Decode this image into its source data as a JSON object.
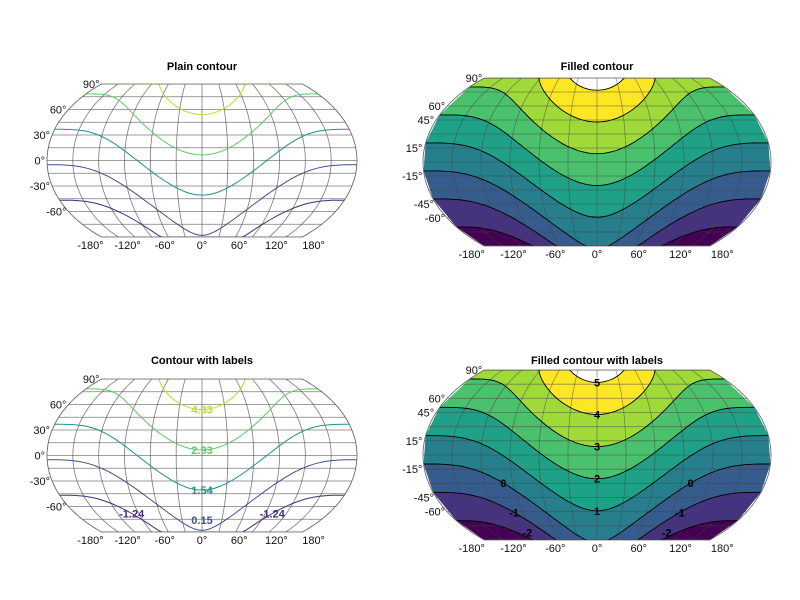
{
  "chart_data": [
    {
      "type": "contour",
      "title": "Plain contour",
      "filled": false,
      "levels": [
        -1.24,
        0.15,
        1.54,
        2.93,
        4.33
      ],
      "show_labels": false,
      "lat_ticks": [
        "90°",
        "60°",
        "30°",
        "0°",
        "-30°",
        "-60°"
      ],
      "lat_values": [
        90,
        60,
        30,
        0,
        -30,
        -60
      ],
      "lon_ticks": [
        "-180°",
        "-120°",
        "-60°",
        "0°",
        "60°",
        "120°",
        "180°"
      ],
      "colormap": "viridis",
      "grid": true
    },
    {
      "type": "contour",
      "title": "Filled contour",
      "filled": true,
      "levels": [
        -2,
        -1,
        0,
        1,
        2,
        3,
        4,
        5
      ],
      "show_labels": false,
      "lat_ticks": [
        "90°",
        "60°",
        "45°",
        "15°",
        "-15°",
        "-45°",
        "-60°"
      ],
      "lat_values": [
        90,
        60,
        45,
        15,
        -15,
        -45,
        -60
      ],
      "lon_ticks": [
        "-180°",
        "-120°",
        "-60°",
        "0°",
        "60°",
        "120°",
        "180°"
      ],
      "colormap": "viridis",
      "grid": true
    },
    {
      "type": "contour",
      "title": "Contour with labels",
      "filled": false,
      "levels": [
        -1.24,
        0.15,
        1.54,
        2.93,
        4.33
      ],
      "show_labels": true,
      "contour_labels": [
        "-1.24",
        "0.15",
        "1.54",
        "2.93",
        "4.33"
      ],
      "lat_ticks": [
        "90°",
        "60°",
        "30°",
        "0°",
        "-30°",
        "-60°"
      ],
      "lat_values": [
        90,
        60,
        30,
        0,
        -30,
        -60
      ],
      "lon_ticks": [
        "-180°",
        "-120°",
        "-60°",
        "0°",
        "60°",
        "120°",
        "180°"
      ],
      "colormap": "viridis",
      "grid": true
    },
    {
      "type": "contour",
      "title": "Filled contour with labels",
      "filled": true,
      "levels": [
        -2,
        -1,
        0,
        1,
        2,
        3,
        4,
        5
      ],
      "show_labels": true,
      "contour_labels": [
        "-2",
        "-1",
        "0",
        "1",
        "2",
        "3",
        "4",
        "5"
      ],
      "lat_ticks": [
        "90°",
        "60°",
        "45°",
        "15°",
        "-15°",
        "-45°",
        "-60°"
      ],
      "lat_values": [
        90,
        60,
        45,
        15,
        -15,
        -45,
        -60
      ],
      "lon_ticks": [
        "-180°",
        "-120°",
        "-60°",
        "0°",
        "60°",
        "120°",
        "180°"
      ],
      "colormap": "viridis",
      "grid": true
    }
  ],
  "colors": {
    "viridis": [
      "#440154",
      "#46337f",
      "#365c8d",
      "#277f8e",
      "#1fa187",
      "#4ac16d",
      "#a0da39",
      "#fde725"
    ],
    "line_levels": [
      "#472c7a",
      "#3b528b",
      "#21908d",
      "#5ec962",
      "#b5de2b"
    ],
    "grid": "#555555"
  }
}
